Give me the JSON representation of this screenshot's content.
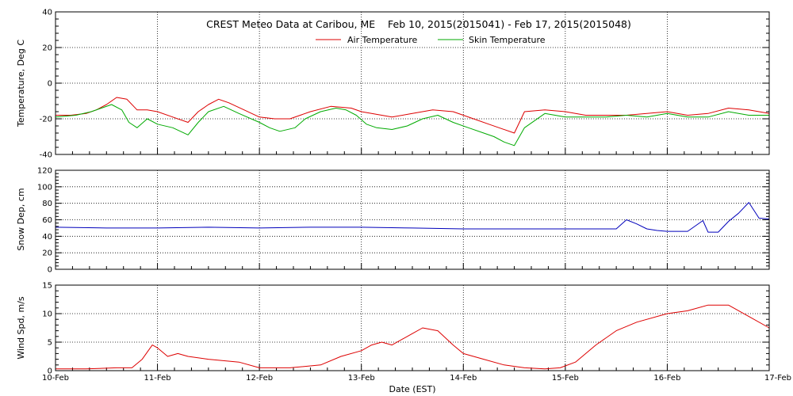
{
  "chart_data": {
    "title": "CREST Meteo Data at Caribou, ME    Feb 10, 2015(2015041) - Feb 17, 2015(2015048)",
    "xlabel": "Date (EST)",
    "x_ticks": [
      "10-Feb",
      "11-Feb",
      "12-Feb",
      "13-Feb",
      "14-Feb",
      "15-Feb",
      "16-Feb",
      "17-Feb"
    ],
    "xlim_days": [
      0,
      7
    ],
    "grid": true,
    "legend_position": "top-center",
    "panels": [
      {
        "type": "line",
        "ylabel": "Temperature, Deg C",
        "ylim": [
          -40,
          40
        ],
        "y_ticks": [
          -40,
          -20,
          0,
          20,
          40
        ],
        "series": [
          {
            "name": "Air Temperature",
            "color": "#dd0000",
            "x": [
              0,
              0.15,
              0.3,
              0.4,
              0.5,
              0.6,
              0.7,
              0.8,
              0.9,
              1.0,
              1.15,
              1.3,
              1.4,
              1.5,
              1.6,
              1.7,
              1.85,
              2.0,
              2.15,
              2.3,
              2.5,
              2.7,
              2.9,
              3.0,
              3.1,
              3.3,
              3.5,
              3.7,
              3.9,
              4.1,
              4.25,
              4.35,
              4.5,
              4.6,
              4.8,
              5.0,
              5.2,
              5.4,
              5.6,
              5.8,
              6.0,
              6.2,
              6.4,
              6.6,
              6.8,
              7.0
            ],
            "y": [
              -18,
              -18,
              -17,
              -15,
              -12,
              -8,
              -9,
              -15,
              -15,
              -16,
              -19,
              -22,
              -16,
              -12,
              -9,
              -11,
              -15,
              -19,
              -20,
              -20,
              -16,
              -13,
              -14,
              -16,
              -17,
              -19,
              -17,
              -15,
              -16,
              -20,
              -23,
              -25,
              -28,
              -16,
              -15,
              -16,
              -18,
              -18,
              -18,
              -17,
              -16,
              -18,
              -17,
              -14,
              -15,
              -17
            ]
          },
          {
            "name": "Skin Temperature",
            "color": "#00aa00",
            "x": [
              0,
              0.2,
              0.35,
              0.45,
              0.55,
              0.65,
              0.72,
              0.8,
              0.9,
              1.0,
              1.15,
              1.3,
              1.4,
              1.5,
              1.65,
              1.8,
              2.0,
              2.1,
              2.2,
              2.35,
              2.45,
              2.6,
              2.75,
              2.85,
              2.95,
              3.05,
              3.15,
              3.3,
              3.45,
              3.6,
              3.75,
              3.9,
              4.05,
              4.2,
              4.3,
              4.4,
              4.5,
              4.6,
              4.8,
              5.0,
              5.2,
              5.4,
              5.6,
              5.8,
              6.0,
              6.2,
              6.4,
              6.6,
              6.8,
              7.0
            ],
            "y": [
              -19,
              -18,
              -16,
              -14,
              -12,
              -15,
              -22,
              -25,
              -20,
              -23,
              -25,
              -29,
              -22,
              -16,
              -13,
              -17,
              -22,
              -25,
              -27,
              -25,
              -20,
              -16,
              -14,
              -15,
              -18,
              -23,
              -25,
              -26,
              -24,
              -20,
              -18,
              -22,
              -25,
              -28,
              -30,
              -33,
              -35,
              -25,
              -17,
              -19,
              -19,
              -19,
              -18,
              -19,
              -17,
              -19,
              -19,
              -16,
              -18,
              -18
            ]
          }
        ]
      },
      {
        "type": "line",
        "ylabel": "Snow Dep, cm",
        "ylim": [
          0,
          120
        ],
        "y_ticks": [
          0,
          20,
          40,
          60,
          80,
          100,
          120
        ],
        "series": [
          {
            "color": "#0000bb",
            "x": [
              0,
              0.5,
              1.0,
              1.5,
              2.0,
              2.5,
              3.0,
              3.5,
              4.0,
              4.5,
              5.0,
              5.5,
              5.6,
              5.7,
              5.8,
              5.9,
              6.0,
              6.2,
              6.35,
              6.4,
              6.5,
              6.6,
              6.7,
              6.8,
              6.9,
              7.0
            ],
            "y": [
              51,
              50,
              50,
              51,
              50,
              51,
              51,
              50,
              49,
              49,
              49,
              49,
              60,
              55,
              49,
              47,
              46,
              46,
              59,
              45,
              45,
              58,
              68,
              81,
              62,
              61
            ]
          }
        ]
      },
      {
        "type": "line",
        "ylabel": "Wind Spd, m/s",
        "ylim": [
          0,
          15
        ],
        "y_ticks": [
          0,
          5,
          10,
          15
        ],
        "series": [
          {
            "color": "#dd0000",
            "x": [
              0,
              0.3,
              0.6,
              0.75,
              0.85,
              0.95,
              1.0,
              1.1,
              1.2,
              1.3,
              1.5,
              1.8,
              2.0,
              2.3,
              2.6,
              2.8,
              3.0,
              3.1,
              3.2,
              3.3,
              3.5,
              3.6,
              3.75,
              3.9,
              4.0,
              4.2,
              4.4,
              4.6,
              4.8,
              4.95,
              5.1,
              5.3,
              5.5,
              5.7,
              6.0,
              6.2,
              6.4,
              6.6,
              6.8,
              7.0
            ],
            "y": [
              0.3,
              0.3,
              0.5,
              0.5,
              2.0,
              4.5,
              4.0,
              2.5,
              3.0,
              2.5,
              2.0,
              1.5,
              0.5,
              0.5,
              1.0,
              2.5,
              3.5,
              4.5,
              5.0,
              4.5,
              6.5,
              7.5,
              7.0,
              4.5,
              3.0,
              2.0,
              1.0,
              0.5,
              0.3,
              0.5,
              1.5,
              4.5,
              7.0,
              8.5,
              10.0,
              10.5,
              11.5,
              11.5,
              9.5,
              7.5
            ]
          }
        ]
      }
    ]
  }
}
